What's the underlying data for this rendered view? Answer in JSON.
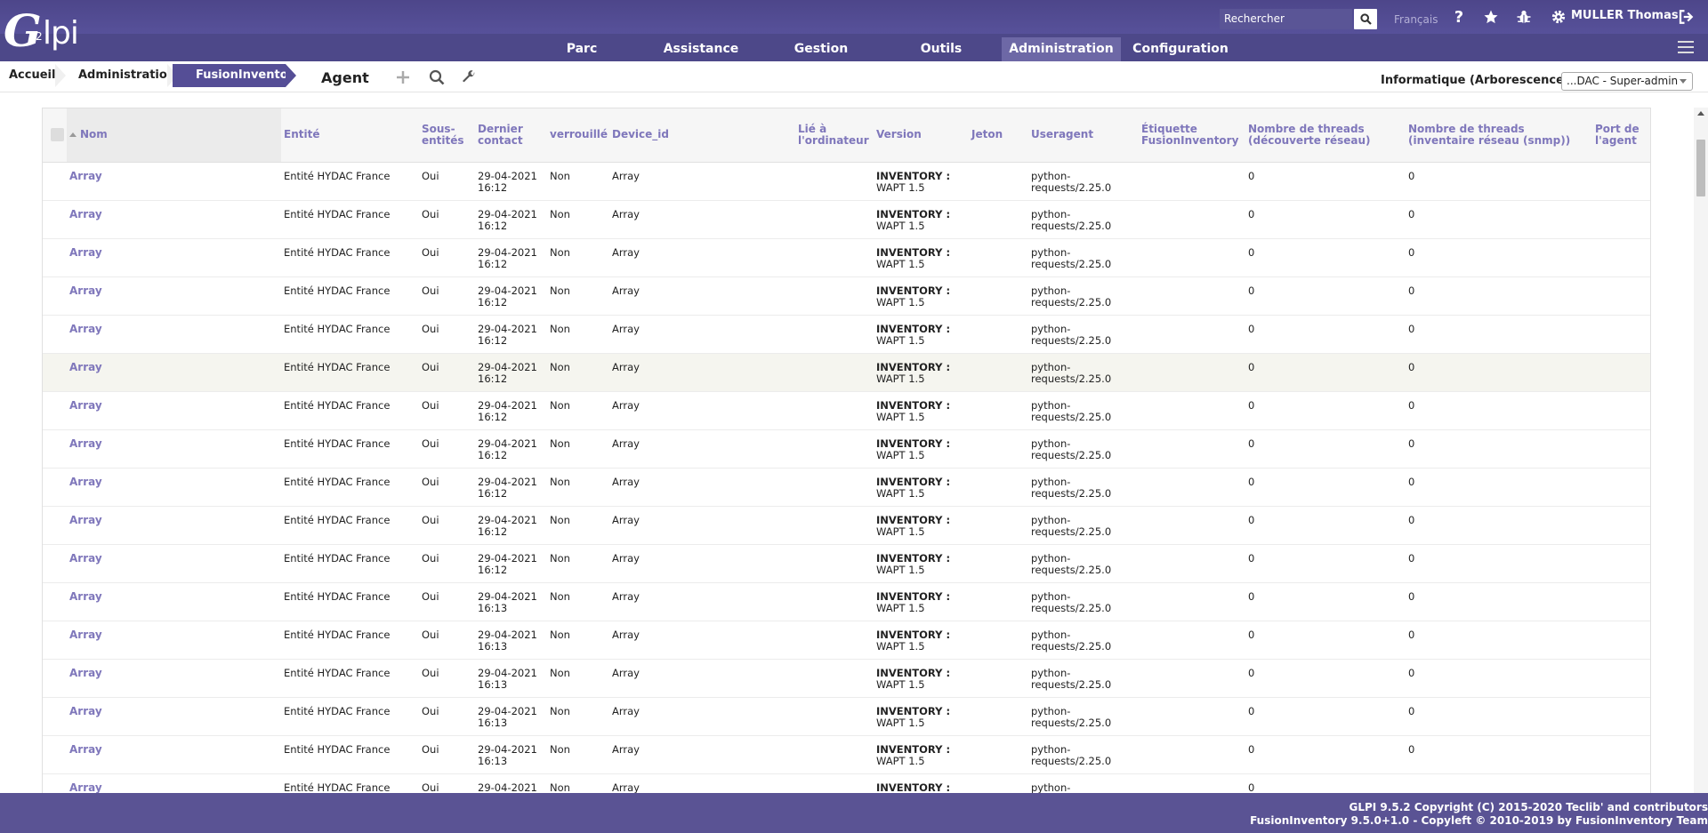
{
  "header": {
    "logo_text": "Glpi",
    "search_placeholder": "Rechercher",
    "language": "Français",
    "user": "MULLER Thomas",
    "menu": [
      {
        "label": "Parc",
        "active": false
      },
      {
        "label": "Assistance",
        "active": false
      },
      {
        "label": "Gestion",
        "active": false
      },
      {
        "label": "Outils",
        "active": false
      },
      {
        "label": "Administration",
        "active": true
      },
      {
        "label": "Configuration",
        "active": false
      }
    ]
  },
  "breadcrumb": {
    "items": [
      "Accueil",
      "Administration",
      "FusionInventory"
    ],
    "page_title": "Agent",
    "entity_label": "Informatique (Arborescence)",
    "profile": "...DAC - Super-admin"
  },
  "table": {
    "headers": {
      "nom": "Nom",
      "entite": "Entité",
      "sous_entites": "Sous-entités",
      "dernier_contact": "Dernier contact",
      "verrouille": "verrouillé",
      "device_id": "Device_id",
      "lie": "Lié à l'ordinateur",
      "version": "Version",
      "jeton": "Jeton",
      "useragent": "Useragent",
      "etiquette": "Étiquette FusionInventory",
      "threads_decouverte": "Nombre de threads (découverte réseau)",
      "threads_inventaire": "Nombre de threads (inventaire réseau (snmp))",
      "port": "Port de l'agent"
    },
    "rows": [
      {
        "nom": "Array",
        "entite": "Entité HYDAC France",
        "sous": "Oui",
        "date": "29-04-2021",
        "time": "16:12",
        "verr": "Non",
        "device": "Array",
        "inv": "INVENTORY :",
        "wapt": "WAPT 1.5",
        "ua1": "python-",
        "ua2": "requests/2.25.0",
        "t1": "0",
        "t2": "0"
      },
      {
        "nom": "Array",
        "entite": "Entité HYDAC France",
        "sous": "Oui",
        "date": "29-04-2021",
        "time": "16:12",
        "verr": "Non",
        "device": "Array",
        "inv": "INVENTORY :",
        "wapt": "WAPT 1.5",
        "ua1": "python-",
        "ua2": "requests/2.25.0",
        "t1": "0",
        "t2": "0"
      },
      {
        "nom": "Array",
        "entite": "Entité HYDAC France",
        "sous": "Oui",
        "date": "29-04-2021",
        "time": "16:12",
        "verr": "Non",
        "device": "Array",
        "inv": "INVENTORY :",
        "wapt": "WAPT 1.5",
        "ua1": "python-",
        "ua2": "requests/2.25.0",
        "t1": "0",
        "t2": "0"
      },
      {
        "nom": "Array",
        "entite": "Entité HYDAC France",
        "sous": "Oui",
        "date": "29-04-2021",
        "time": "16:12",
        "verr": "Non",
        "device": "Array",
        "inv": "INVENTORY :",
        "wapt": "WAPT 1.5",
        "ua1": "python-",
        "ua2": "requests/2.25.0",
        "t1": "0",
        "t2": "0"
      },
      {
        "nom": "Array",
        "entite": "Entité HYDAC France",
        "sous": "Oui",
        "date": "29-04-2021",
        "time": "16:12",
        "verr": "Non",
        "device": "Array",
        "inv": "INVENTORY :",
        "wapt": "WAPT 1.5",
        "ua1": "python-",
        "ua2": "requests/2.25.0",
        "t1": "0",
        "t2": "0"
      },
      {
        "nom": "Array",
        "entite": "Entité HYDAC France",
        "sous": "Oui",
        "date": "29-04-2021",
        "time": "16:12",
        "verr": "Non",
        "device": "Array",
        "inv": "INVENTORY :",
        "wapt": "WAPT 1.5",
        "ua1": "python-",
        "ua2": "requests/2.25.0",
        "t1": "0",
        "t2": "0"
      },
      {
        "nom": "Array",
        "entite": "Entité HYDAC France",
        "sous": "Oui",
        "date": "29-04-2021",
        "time": "16:12",
        "verr": "Non",
        "device": "Array",
        "inv": "INVENTORY :",
        "wapt": "WAPT 1.5",
        "ua1": "python-",
        "ua2": "requests/2.25.0",
        "t1": "0",
        "t2": "0"
      },
      {
        "nom": "Array",
        "entite": "Entité HYDAC France",
        "sous": "Oui",
        "date": "29-04-2021",
        "time": "16:12",
        "verr": "Non",
        "device": "Array",
        "inv": "INVENTORY :",
        "wapt": "WAPT 1.5",
        "ua1": "python-",
        "ua2": "requests/2.25.0",
        "t1": "0",
        "t2": "0"
      },
      {
        "nom": "Array",
        "entite": "Entité HYDAC France",
        "sous": "Oui",
        "date": "29-04-2021",
        "time": "16:12",
        "verr": "Non",
        "device": "Array",
        "inv": "INVENTORY :",
        "wapt": "WAPT 1.5",
        "ua1": "python-",
        "ua2": "requests/2.25.0",
        "t1": "0",
        "t2": "0"
      },
      {
        "nom": "Array",
        "entite": "Entité HYDAC France",
        "sous": "Oui",
        "date": "29-04-2021",
        "time": "16:12",
        "verr": "Non",
        "device": "Array",
        "inv": "INVENTORY :",
        "wapt": "WAPT 1.5",
        "ua1": "python-",
        "ua2": "requests/2.25.0",
        "t1": "0",
        "t2": "0"
      },
      {
        "nom": "Array",
        "entite": "Entité HYDAC France",
        "sous": "Oui",
        "date": "29-04-2021",
        "time": "16:12",
        "verr": "Non",
        "device": "Array",
        "inv": "INVENTORY :",
        "wapt": "WAPT 1.5",
        "ua1": "python-",
        "ua2": "requests/2.25.0",
        "t1": "0",
        "t2": "0"
      },
      {
        "nom": "Array",
        "entite": "Entité HYDAC France",
        "sous": "Oui",
        "date": "29-04-2021",
        "time": "16:13",
        "verr": "Non",
        "device": "Array",
        "inv": "INVENTORY :",
        "wapt": "WAPT 1.5",
        "ua1": "python-",
        "ua2": "requests/2.25.0",
        "t1": "0",
        "t2": "0"
      },
      {
        "nom": "Array",
        "entite": "Entité HYDAC France",
        "sous": "Oui",
        "date": "29-04-2021",
        "time": "16:13",
        "verr": "Non",
        "device": "Array",
        "inv": "INVENTORY :",
        "wapt": "WAPT 1.5",
        "ua1": "python-",
        "ua2": "requests/2.25.0",
        "t1": "0",
        "t2": "0"
      },
      {
        "nom": "Array",
        "entite": "Entité HYDAC France",
        "sous": "Oui",
        "date": "29-04-2021",
        "time": "16:13",
        "verr": "Non",
        "device": "Array",
        "inv": "INVENTORY :",
        "wapt": "WAPT 1.5",
        "ua1": "python-",
        "ua2": "requests/2.25.0",
        "t1": "0",
        "t2": "0"
      },
      {
        "nom": "Array",
        "entite": "Entité HYDAC France",
        "sous": "Oui",
        "date": "29-04-2021",
        "time": "16:13",
        "verr": "Non",
        "device": "Array",
        "inv": "INVENTORY :",
        "wapt": "WAPT 1.5",
        "ua1": "python-",
        "ua2": "requests/2.25.0",
        "t1": "0",
        "t2": "0"
      },
      {
        "nom": "Array",
        "entite": "Entité HYDAC France",
        "sous": "Oui",
        "date": "29-04-2021",
        "time": "16:13",
        "verr": "Non",
        "device": "Array",
        "inv": "INVENTORY :",
        "wapt": "WAPT 1.5",
        "ua1": "python-",
        "ua2": "requests/2.25.0",
        "t1": "0",
        "t2": "0"
      },
      {
        "nom": "Array",
        "entite": "Entité HYDAC France",
        "sous": "Oui",
        "date": "29-04-2021",
        "time": "",
        "verr": "Non",
        "device": "Array",
        "inv": "INVENTORY :",
        "wapt": "",
        "ua1": "python-",
        "ua2": "",
        "t1": "0",
        "t2": ""
      }
    ]
  },
  "footer": {
    "line1": "GLPI 9.5.2 Copyright (C) 2015-2020 Teclib' and contributors",
    "line2": "FusionInventory 9.5.0+1.0 - Copyleft © 2010-2019 by FusionInventory Team"
  },
  "colors": {
    "header_bg": "#4d4889",
    "accent": "#7f77bb",
    "active_crumb": "#554e96",
    "footer_bg": "#5a5394"
  }
}
